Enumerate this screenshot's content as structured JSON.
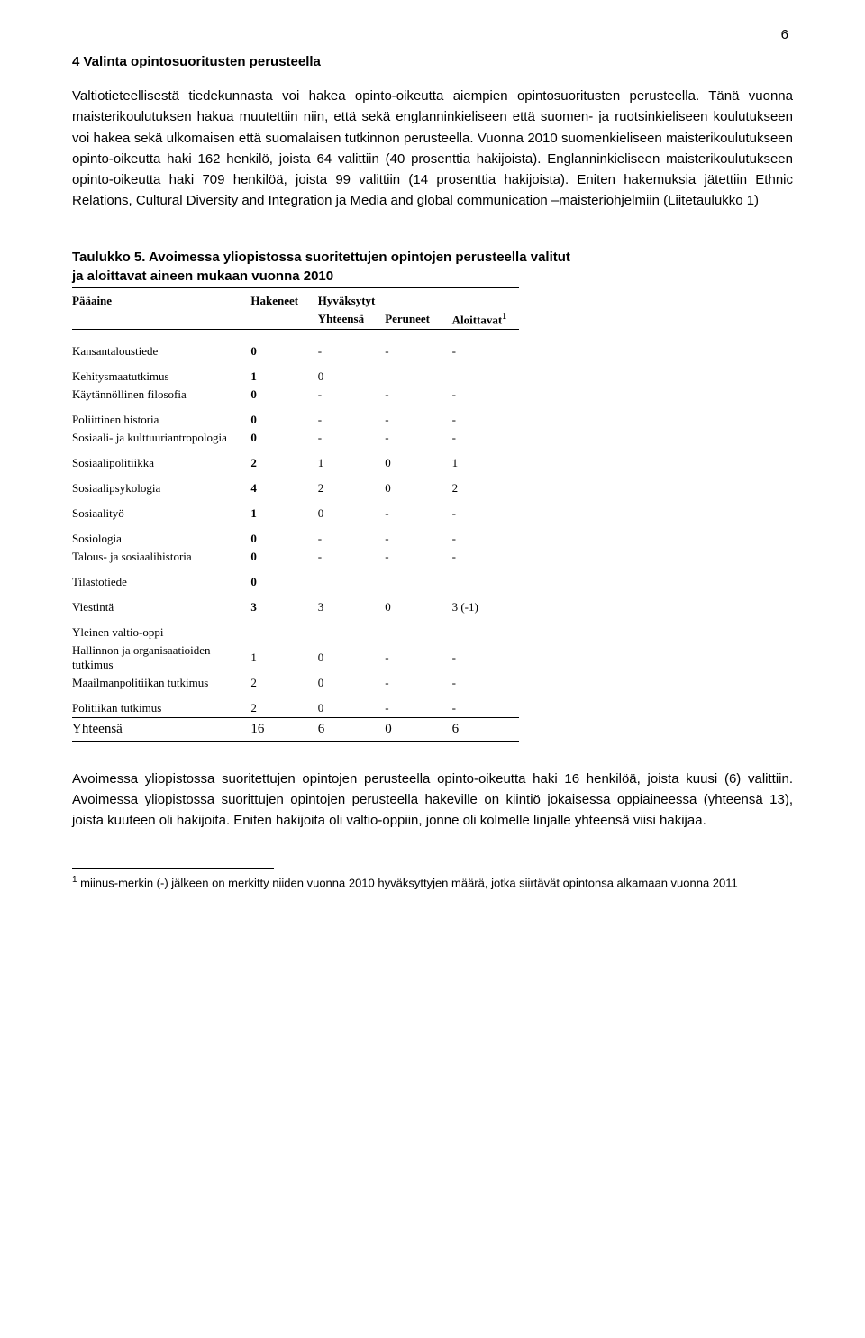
{
  "page_number": "6",
  "heading": "4 Valinta opintosuoritusten perusteella",
  "paragraph1": "Valtiotieteellisestä tiedekunnasta voi hakea opinto-oikeutta aiempien opintosuoritusten perusteella. Tänä vuonna maisterikoulutuksen hakua muutettiin niin, että sekä englanninkieliseen että suomen- ja ruotsinkieliseen koulutukseen voi hakea sekä ulkomaisen että suomalaisen tutkinnon perusteella. Vuonna 2010 suomenkieliseen maisterikoulutukseen opinto-oikeutta haki 162 henkilö, joista 64 valittiin (40 prosenttia hakijoista). Englanninkieliseen maisterikoulutukseen opinto-oikeutta haki 709 henkilöä, joista 99 valittiin (14 prosenttia hakijoista). Eniten hakemuksia jätettiin Ethnic Relations, Cultural Diversity and Integration ja Media and global communication –maisteriohjelmiin (Liitetaulukko 1)",
  "table": {
    "caption": "Taulukko 5. Avoimessa yliopistossa suoritettujen opintojen perusteella valitut ja aloittavat aineen mukaan vuonna 2010",
    "header": {
      "col1": "Pääaine",
      "col2": "Hakeneet",
      "col3": "Hyväksytyt",
      "col3sub": "Yhteensä",
      "col4": "Peruneet",
      "col5": "Aloittavat",
      "col5_super": "1"
    },
    "rows": [
      {
        "subject": "Kansantaloustiede",
        "hakeneet": "0",
        "hyv": "-",
        "per": "-",
        "alo": "-",
        "gap": true,
        "bold": true
      },
      {
        "subject": "Kehitysmaatutkimus",
        "hakeneet": "1",
        "hyv": "0",
        "per": "",
        "alo": "",
        "gap": true,
        "bold": true
      },
      {
        "subject": "Käytännöllinen filosofia",
        "hakeneet": "0",
        "hyv": "-",
        "per": "-",
        "alo": "-",
        "gap": false,
        "bold": true
      },
      {
        "subject": "Poliittinen historia",
        "hakeneet": "0",
        "hyv": "-",
        "per": "-",
        "alo": "-",
        "gap": true,
        "bold": true
      },
      {
        "subject": "Sosiaali- ja kulttuuriantropologia",
        "hakeneet": "0",
        "hyv": "-",
        "per": "-",
        "alo": "-",
        "gap": false,
        "bold": true
      },
      {
        "subject": "Sosiaalipolitiikka",
        "hakeneet": "2",
        "hyv": "1",
        "per": "0",
        "alo": "1",
        "gap": true,
        "bold": true
      },
      {
        "subject": "Sosiaalipsykologia",
        "hakeneet": "4",
        "hyv": "2",
        "per": "0",
        "alo": "2",
        "gap": true,
        "bold": true
      },
      {
        "subject": "Sosiaalityö",
        "hakeneet": "1",
        "hyv": "0",
        "per": "-",
        "alo": "-",
        "gap": true,
        "bold": true
      },
      {
        "subject": "Sosiologia",
        "hakeneet": "0",
        "hyv": "-",
        "per": "-",
        "alo": "-",
        "gap": true,
        "bold": true
      },
      {
        "subject": "Talous- ja sosiaalihistoria",
        "hakeneet": "0",
        "hyv": "-",
        "per": "-",
        "alo": "-",
        "gap": false,
        "bold": true
      },
      {
        "subject": "Tilastotiede",
        "hakeneet": "0",
        "hyv": "",
        "per": "",
        "alo": "",
        "gap": true,
        "bold": true
      },
      {
        "subject": "Viestintä",
        "hakeneet": "3",
        "hyv": "3",
        "per": "0",
        "alo": "3 (-1)",
        "gap": true,
        "bold": true
      },
      {
        "subject": "Yleinen valtio-oppi",
        "hakeneet": "",
        "hyv": "",
        "per": "",
        "alo": "",
        "gap": true,
        "bold": false
      },
      {
        "subject": "Hallinnon ja organisaatioiden tutkimus",
        "hakeneet": "1",
        "hyv": "0",
        "per": "-",
        "alo": "-",
        "gap": false,
        "bold": false
      },
      {
        "subject": "Maailmanpolitiikan tutkimus",
        "hakeneet": "2",
        "hyv": "0",
        "per": "-",
        "alo": "-",
        "gap": false,
        "bold": false
      },
      {
        "subject": "Politiikan tutkimus",
        "hakeneet": "2",
        "hyv": "0",
        "per": "-",
        "alo": "-",
        "gap": true,
        "bold": false
      }
    ],
    "summary": {
      "label": "Yhteensä",
      "hakeneet": "16",
      "hyv": "6",
      "per": "0",
      "alo": "6"
    }
  },
  "paragraph2": "Avoimessa yliopistossa suoritettujen opintojen perusteella opinto-oikeutta haki 16 henkilöä, joista kuusi (6) valittiin. Avoimessa yliopistossa suorittujen opintojen perusteella hakeville on kiintiö jokaisessa oppiaineessa (yhteensä 13), joista kuuteen oli hakijoita. Eniten hakijoita oli valtio-oppiin, jonne oli kolmelle linjalle yhteensä viisi hakijaa.",
  "footnote": {
    "marker": "1",
    "text": " miinus-merkin (-) jälkeen on merkitty niiden vuonna 2010 hyväksyttyjen määrä, jotka siirtävät opintonsa alkamaan vuonna 2011"
  }
}
